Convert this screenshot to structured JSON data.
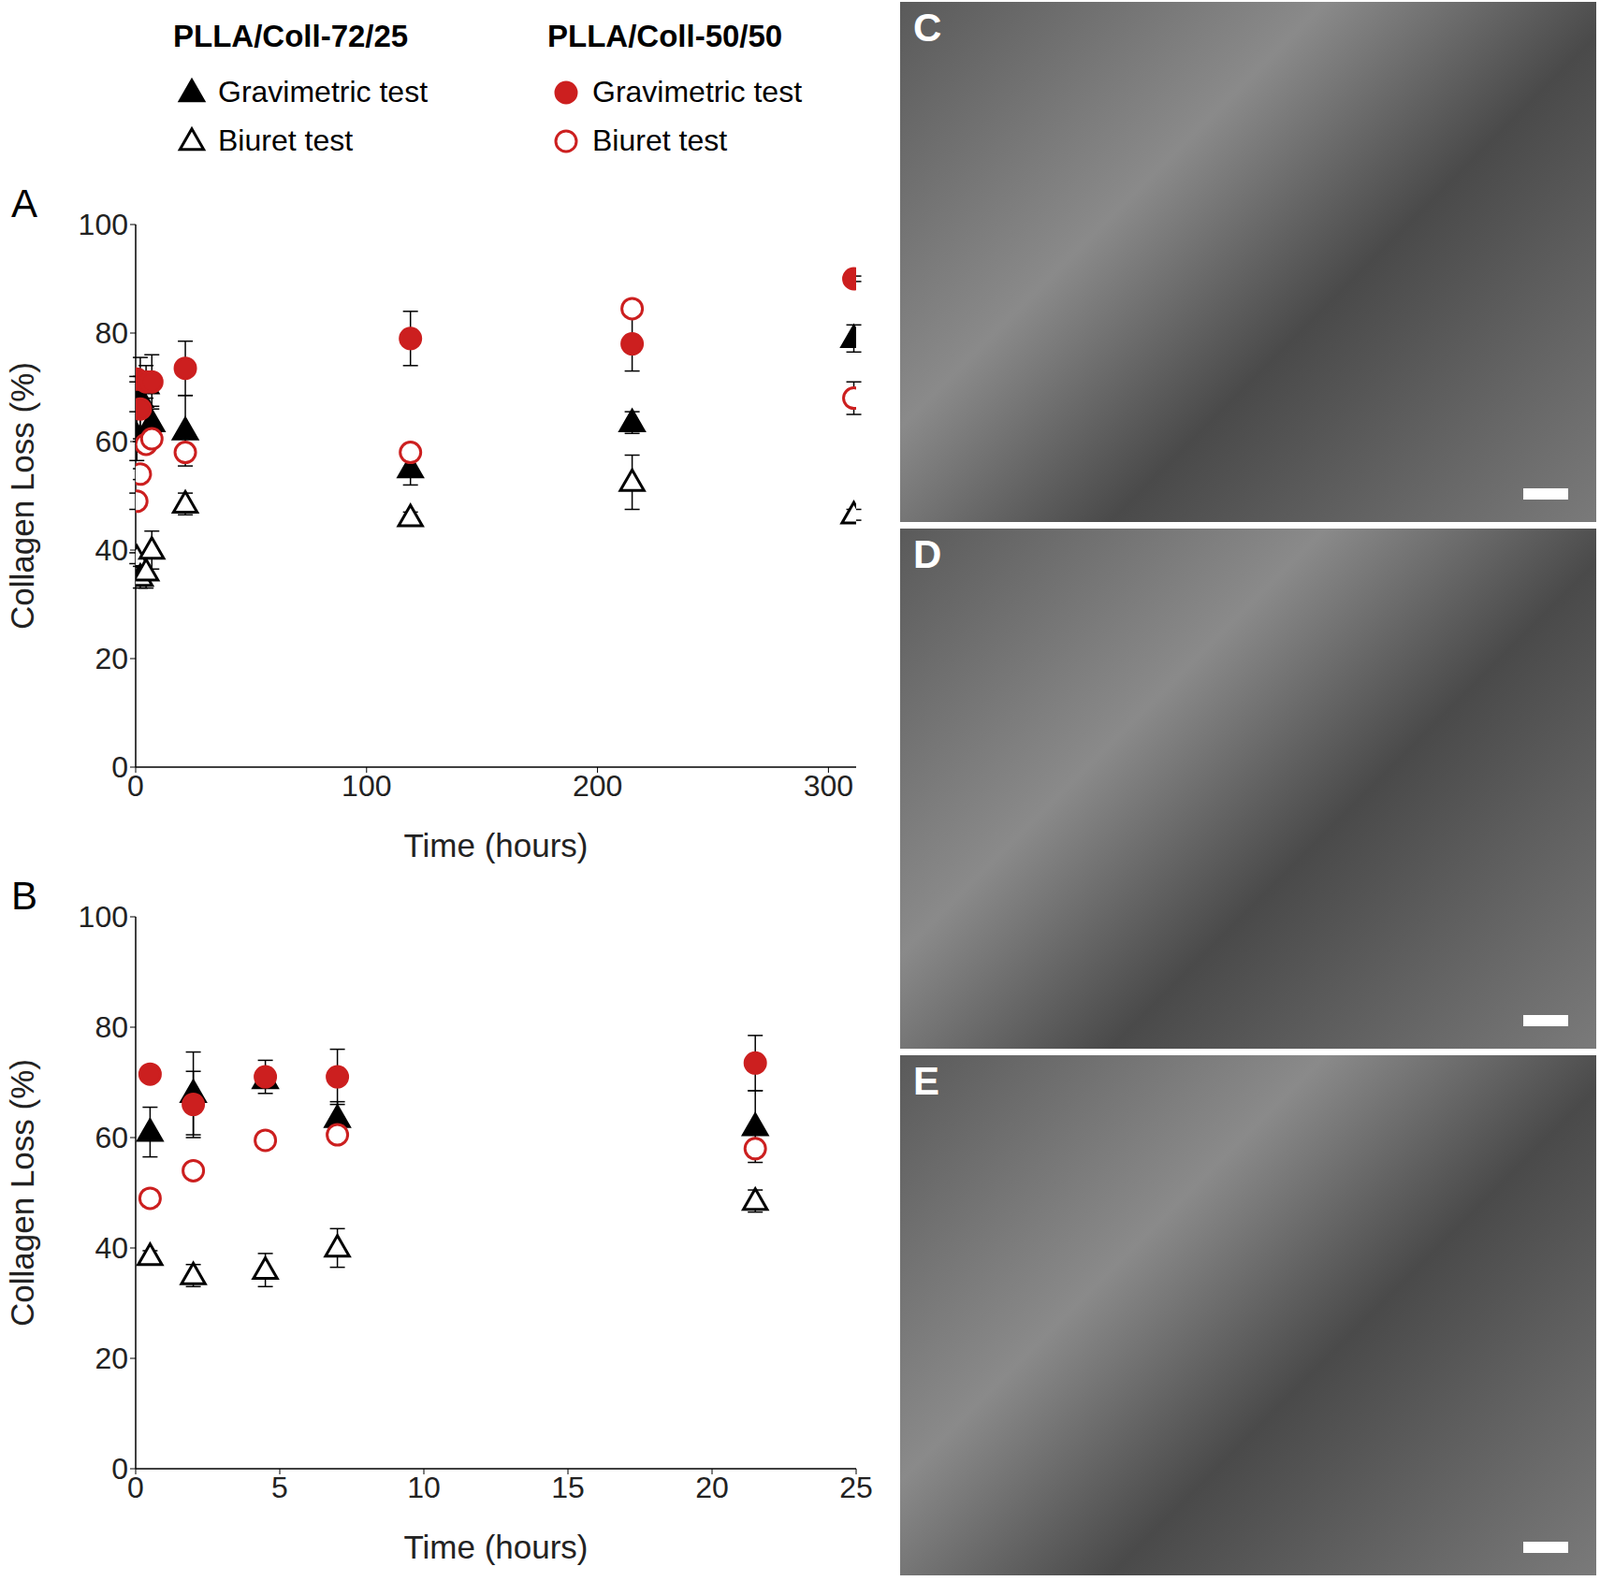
{
  "chart_data": [
    {
      "panel": "A",
      "type": "scatter",
      "xlabel": "Time (hours)",
      "ylabel": "Collagen Loss (%)",
      "x": [
        0.5,
        2,
        4.5,
        7,
        21.5,
        119,
        215,
        311
      ],
      "xlim": [
        0,
        312
      ],
      "xticks": [
        0,
        100,
        200,
        300
      ],
      "ylim": [
        0,
        100
      ],
      "yticks": [
        0,
        20,
        40,
        60,
        80,
        100
      ],
      "legend": "top",
      "series": [
        {
          "name": "Gravimetric test",
          "group": "PLLA/Coll-72/25",
          "color": "#000000",
          "marker": "triangle",
          "values": [
            61,
            68,
            70.5,
            63.5,
            62,
            55,
            63.5,
            79
          ],
          "errors": [
            4.5,
            7.5,
            1,
            3,
            6.5,
            3,
            2,
            2.5
          ]
        },
        {
          "name": "Biuret test",
          "group": "PLLA/Coll-72/25",
          "color": "#000000",
          "marker": "triangle-open",
          "values": [
            38.5,
            35,
            36,
            40,
            48.5,
            46,
            52.5,
            46.5
          ],
          "errors": [
            1,
            2,
            3,
            3.5,
            2,
            1,
            5,
            1
          ]
        },
        {
          "name": "Gravimetric test",
          "group": "PLLA/Coll-50/50",
          "color": "#cc1f1f",
          "marker": "circle",
          "values": [
            71.5,
            66,
            71,
            71,
            73.5,
            79,
            78,
            90
          ],
          "errors": [
            0.5,
            6,
            3,
            5,
            5,
            5,
            5,
            0.5
          ]
        },
        {
          "name": "Biuret test",
          "group": "PLLA/Coll-50/50",
          "color": "#cc1f1f",
          "marker": "circle-open",
          "values": [
            49,
            54,
            59.5,
            60.5,
            58,
            58,
            84.5,
            68
          ],
          "errors": [
            1.5,
            1,
            1.5,
            1,
            1.5,
            1,
            1,
            3
          ]
        }
      ]
    },
    {
      "panel": "B",
      "type": "scatter",
      "xlabel": "Time (hours)",
      "ylabel": "Collagen Loss (%)",
      "x": [
        0.5,
        2,
        4.5,
        7,
        21.5
      ],
      "xlim": [
        0,
        25
      ],
      "xticks": [
        0,
        5,
        10,
        15,
        20,
        25
      ],
      "ylim": [
        0,
        100
      ],
      "yticks": [
        0,
        20,
        40,
        60,
        80,
        100
      ],
      "series": [
        {
          "name": "Gravimetric test",
          "group": "PLLA/Coll-72/25",
          "color": "#000000",
          "marker": "triangle",
          "values": [
            61,
            68,
            70.5,
            63.5,
            62
          ],
          "errors": [
            4.5,
            7.5,
            1,
            3,
            6.5
          ]
        },
        {
          "name": "Biuret test",
          "group": "PLLA/Coll-72/25",
          "color": "#000000",
          "marker": "triangle-open",
          "values": [
            38.5,
            35,
            36,
            40,
            48.5
          ],
          "errors": [
            1,
            2,
            3,
            3.5,
            2
          ]
        },
        {
          "name": "Gravimetric test",
          "group": "PLLA/Coll-50/50",
          "color": "#cc1f1f",
          "marker": "circle",
          "values": [
            71.5,
            66,
            71,
            71,
            73.5
          ],
          "errors": [
            0.5,
            6,
            3,
            5,
            5
          ]
        },
        {
          "name": "Biuret test",
          "group": "PLLA/Coll-50/50",
          "color": "#cc1f1f",
          "marker": "circle-open",
          "values": [
            49,
            54,
            59.5,
            60.5,
            58
          ],
          "errors": [
            1.5,
            1,
            1.5,
            1,
            1.5
          ]
        }
      ]
    }
  ],
  "images": [
    {
      "panel": "C"
    },
    {
      "panel": "D"
    },
    {
      "panel": "E"
    }
  ]
}
